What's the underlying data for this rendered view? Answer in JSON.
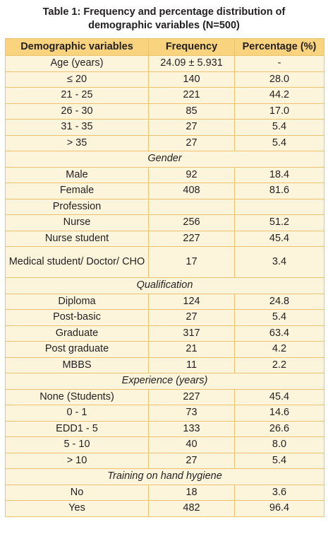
{
  "caption": {
    "line1": "Table 1: Frequency and percentage distribution of",
    "line2": "demographic variables (N=500)"
  },
  "headers": [
    "Demographic variables",
    "Frequency",
    "Percentage (%)"
  ],
  "rows": [
    {
      "type": "data",
      "label": "Age (years)",
      "frequency": "24.09 ± 5.931",
      "percentage": "-"
    },
    {
      "type": "data",
      "label": "≤ 20",
      "frequency": "140",
      "percentage": "28.0"
    },
    {
      "type": "data",
      "label": "21 - 25",
      "frequency": "221",
      "percentage": "44.2"
    },
    {
      "type": "data",
      "label": "26 - 30",
      "frequency": "85",
      "percentage": "17.0"
    },
    {
      "type": "data",
      "label": "31 - 35",
      "frequency": "27",
      "percentage": "5.4"
    },
    {
      "type": "data",
      "label": "> 35",
      "frequency": "27",
      "percentage": "5.4"
    },
    {
      "type": "section",
      "label": "Gender"
    },
    {
      "type": "data",
      "label": "Male",
      "frequency": "92",
      "percentage": "18.4"
    },
    {
      "type": "data",
      "label": "Female",
      "frequency": "408",
      "percentage": "81.6"
    },
    {
      "type": "data",
      "label": "Profession",
      "frequency": "",
      "percentage": ""
    },
    {
      "type": "data",
      "label": "Nurse",
      "frequency": "256",
      "percentage": "51.2"
    },
    {
      "type": "data",
      "label": "Nurse student",
      "frequency": "227",
      "percentage": "45.4"
    },
    {
      "type": "data",
      "label": "Medical student/ Doctor/ CHO",
      "frequency": "17",
      "percentage": "3.4",
      "tall": true
    },
    {
      "type": "section",
      "label": "Qualification"
    },
    {
      "type": "data",
      "label": "Diploma",
      "frequency": "124",
      "percentage": "24.8"
    },
    {
      "type": "data",
      "label": "Post-basic",
      "frequency": "27",
      "percentage": "5.4"
    },
    {
      "type": "data",
      "label": "Graduate",
      "frequency": "317",
      "percentage": "63.4"
    },
    {
      "type": "data",
      "label": "Post graduate",
      "frequency": "21",
      "percentage": "4.2"
    },
    {
      "type": "data",
      "label": "MBBS",
      "frequency": "11",
      "percentage": "2.2"
    },
    {
      "type": "section",
      "label": "Experience (years)"
    },
    {
      "type": "data",
      "label": "None (Students)",
      "frequency": "227",
      "percentage": "45.4"
    },
    {
      "type": "data",
      "label": "0 - 1",
      "frequency": "73",
      "percentage": "14.6"
    },
    {
      "type": "data",
      "label": "EDD1 - 5",
      "frequency": "133",
      "percentage": "26.6"
    },
    {
      "type": "data",
      "label": "5 - 10",
      "frequency": "40",
      "percentage": "8.0"
    },
    {
      "type": "data",
      "label": "> 10",
      "frequency": "27",
      "percentage": "5.4"
    },
    {
      "type": "section",
      "label": "Training on hand hygiene"
    },
    {
      "type": "data",
      "label": "No",
      "frequency": "18",
      "percentage": "3.6"
    },
    {
      "type": "data",
      "label": "Yes",
      "frequency": "482",
      "percentage": "96.4"
    }
  ],
  "colors": {
    "header_bg": "#f9d37d",
    "body_bg": "#fdf4dc",
    "border": "#eac36e",
    "text": "#231f20"
  }
}
